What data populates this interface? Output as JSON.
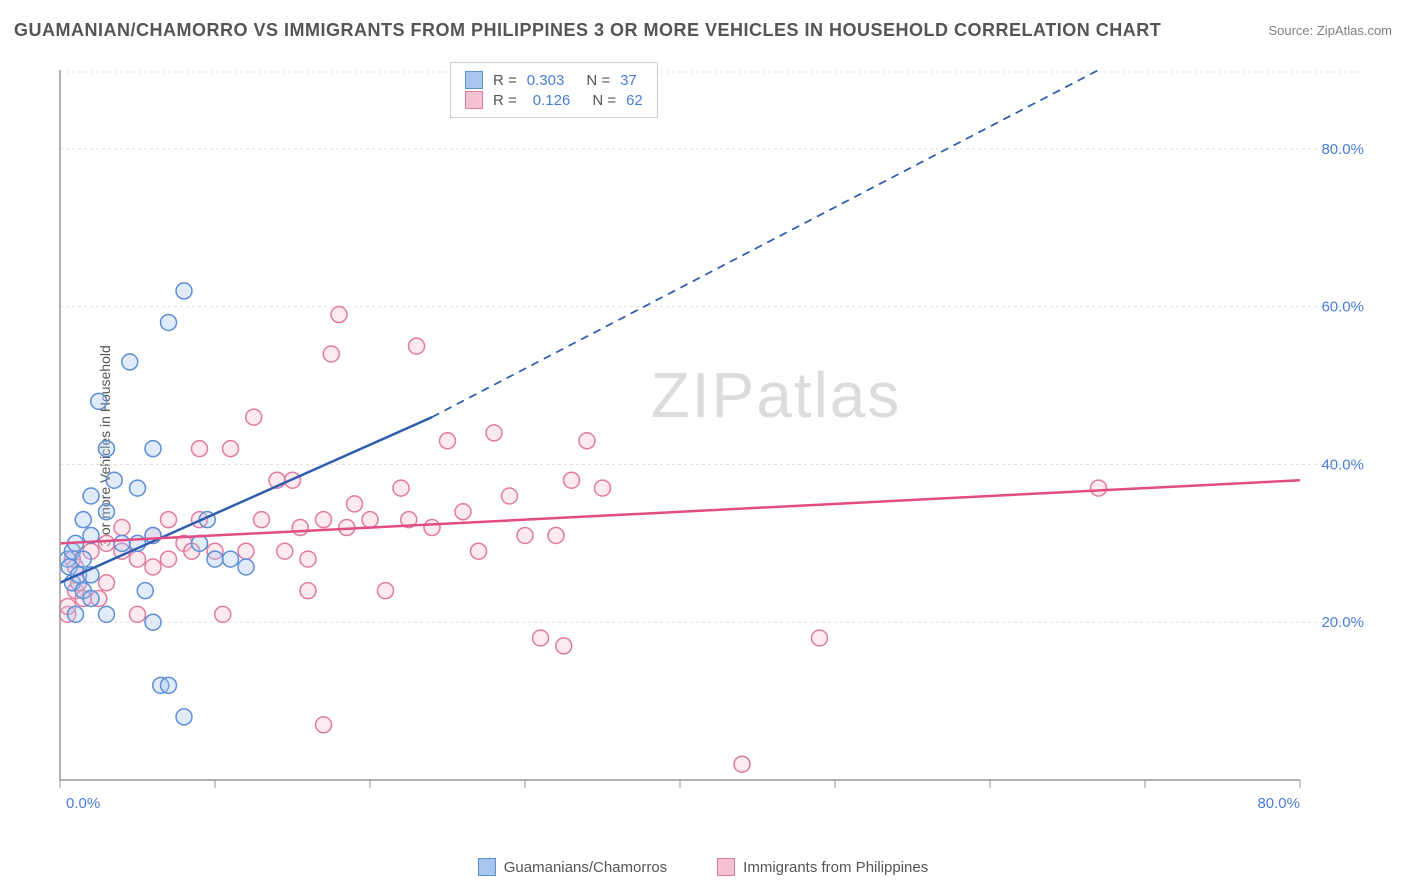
{
  "title": "GUAMANIAN/CHAMORRO VS IMMIGRANTS FROM PHILIPPINES 3 OR MORE VEHICLES IN HOUSEHOLD CORRELATION CHART",
  "source": "Source: ZipAtlas.com",
  "ylabel": "3 or more Vehicles in Household",
  "watermark": "ZIPatlas",
  "chart": {
    "type": "scatter",
    "xlim": [
      0,
      80
    ],
    "ylim": [
      0,
      90
    ],
    "x_ticks": [
      0,
      10,
      20,
      30,
      40,
      50,
      60,
      70,
      80
    ],
    "x_tick_labels": [
      "0.0%",
      "",
      "",
      "",
      "",
      "",
      "",
      "",
      "80.0%"
    ],
    "y_ticks": [
      20,
      40,
      60,
      80
    ],
    "y_tick_labels": [
      "20.0%",
      "40.0%",
      "60.0%",
      "80.0%"
    ],
    "grid_color": "#e0e0e0",
    "axis_color": "#999999",
    "background_color": "#ffffff",
    "marker_radius": 8,
    "marker_stroke_width": 1.5,
    "marker_fill_opacity": 0.35
  },
  "series": [
    {
      "name": "Guamanians/Chamorros",
      "color_fill": "#a8c5ed",
      "color_stroke": "#5b8fd6",
      "R": "0.303",
      "N": "37",
      "trend": {
        "x1": 0,
        "y1": 25,
        "x2": 24,
        "y2": 46,
        "solid_until_x": 24,
        "dash_to": {
          "x": 67,
          "y": 90
        },
        "color": "#2e5db0",
        "width": 2.5
      },
      "points": [
        [
          0.5,
          28
        ],
        [
          0.6,
          27
        ],
        [
          0.8,
          25
        ],
        [
          0.8,
          29
        ],
        [
          1,
          21
        ],
        [
          1,
          30
        ],
        [
          1.2,
          26
        ],
        [
          1.5,
          33
        ],
        [
          1.5,
          28
        ],
        [
          1.5,
          24
        ],
        [
          2,
          36
        ],
        [
          2,
          31
        ],
        [
          2,
          26
        ],
        [
          2,
          23
        ],
        [
          2.5,
          48
        ],
        [
          3,
          42
        ],
        [
          3,
          34
        ],
        [
          3,
          21
        ],
        [
          3.5,
          38
        ],
        [
          4,
          30
        ],
        [
          4.5,
          53
        ],
        [
          5,
          37
        ],
        [
          5,
          30
        ],
        [
          5.5,
          24
        ],
        [
          6,
          42
        ],
        [
          6,
          31
        ],
        [
          6.5,
          12
        ],
        [
          7,
          12
        ],
        [
          7,
          58
        ],
        [
          8,
          62
        ],
        [
          8,
          8
        ],
        [
          9,
          30
        ],
        [
          9.5,
          33
        ],
        [
          10,
          28
        ],
        [
          11,
          28
        ],
        [
          12,
          27
        ],
        [
          6,
          20
        ]
      ]
    },
    {
      "name": "Immigrants from Philippines",
      "color_fill": "#f5c2d1",
      "color_stroke": "#e07ba0",
      "R": "0.126",
      "N": "62",
      "trend": {
        "x1": 0,
        "y1": 30,
        "x2": 80,
        "y2": 38,
        "solid_until_x": 80,
        "color": "#e34b85",
        "width": 2.5
      },
      "points": [
        [
          0.5,
          21
        ],
        [
          0.5,
          22
        ],
        [
          0.8,
          28
        ],
        [
          1,
          24
        ],
        [
          1,
          27
        ],
        [
          1.2,
          25
        ],
        [
          1.5,
          23
        ],
        [
          2,
          29
        ],
        [
          2.5,
          23
        ],
        [
          3,
          30
        ],
        [
          3,
          25
        ],
        [
          4,
          29
        ],
        [
          4,
          32
        ],
        [
          5,
          28
        ],
        [
          5,
          21
        ],
        [
          6,
          31
        ],
        [
          6,
          27
        ],
        [
          7,
          33
        ],
        [
          7,
          28
        ],
        [
          8,
          30
        ],
        [
          8.5,
          29
        ],
        [
          9,
          33
        ],
        [
          9,
          42
        ],
        [
          10,
          29
        ],
        [
          10.5,
          21
        ],
        [
          11,
          42
        ],
        [
          12,
          29
        ],
        [
          12.5,
          46
        ],
        [
          13,
          33
        ],
        [
          14,
          38
        ],
        [
          14.5,
          29
        ],
        [
          15,
          38
        ],
        [
          15.5,
          32
        ],
        [
          16,
          28
        ],
        [
          16,
          24
        ],
        [
          17,
          33
        ],
        [
          17.5,
          54
        ],
        [
          18,
          59
        ],
        [
          18.5,
          32
        ],
        [
          19,
          35
        ],
        [
          20,
          33
        ],
        [
          21,
          24
        ],
        [
          22,
          37
        ],
        [
          22.5,
          33
        ],
        [
          23,
          55
        ],
        [
          24,
          32
        ],
        [
          25,
          43
        ],
        [
          26,
          34
        ],
        [
          27,
          29
        ],
        [
          28,
          44
        ],
        [
          29,
          36
        ],
        [
          30,
          31
        ],
        [
          31,
          18
        ],
        [
          32,
          31
        ],
        [
          32.5,
          17
        ],
        [
          33,
          38
        ],
        [
          34,
          43
        ],
        [
          35,
          37
        ],
        [
          44,
          2
        ],
        [
          49,
          18
        ],
        [
          67,
          37
        ],
        [
          17,
          7
        ]
      ]
    }
  ],
  "legend_bottom": [
    {
      "label": "Guamanians/Chamorros",
      "fill": "#a8c5ed",
      "stroke": "#5b8fd6"
    },
    {
      "label": "Immigrants from Philippines",
      "fill": "#f5c2d1",
      "stroke": "#e07ba0"
    }
  ]
}
